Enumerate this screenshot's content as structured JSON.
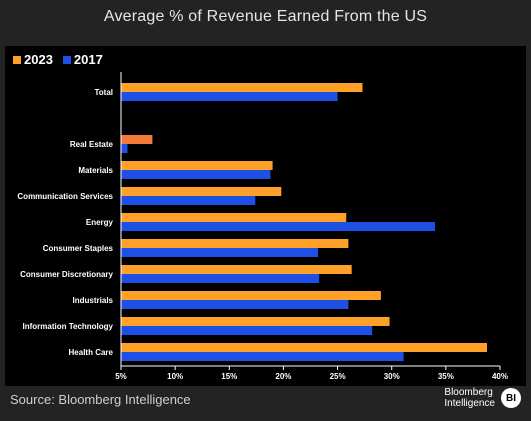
{
  "title": "Average % of Revenue Earned From the US",
  "source": "Source: Bloomberg Intelligence",
  "brand": {
    "line1": "Bloomberg",
    "line2": "Intelligence",
    "logo": "BI"
  },
  "colors": {
    "y2023": "#ffa028",
    "y2017": "#1e50e6",
    "highlight": "#f47a3a",
    "background": "#000000"
  },
  "chart_data": {
    "type": "bar",
    "orientation": "horizontal",
    "title": "Average % of Revenue Earned From the US",
    "categories": [
      "Total",
      "",
      "Real Estate",
      "Materials",
      "Communication Services",
      "Energy",
      "Consumer Staples",
      "Consumer Discretionary",
      "Industrials",
      "Information Technology",
      "Health Care"
    ],
    "series": [
      {
        "name": "2023",
        "values": [
          27.3,
          null,
          7.9,
          19.0,
          19.8,
          25.8,
          26.0,
          26.3,
          29.0,
          29.8,
          38.8
        ]
      },
      {
        "name": "2017",
        "values": [
          25.0,
          null,
          5.6,
          18.8,
          17.4,
          34.0,
          23.2,
          23.3,
          26.0,
          28.2,
          31.1
        ]
      }
    ],
    "xlim": [
      5,
      40
    ],
    "xticks": [
      "5%",
      "10%",
      "15%",
      "20%",
      "25%",
      "30%",
      "35%",
      "40%"
    ],
    "xtick_values": [
      5,
      10,
      15,
      20,
      25,
      30,
      35,
      40
    ],
    "highlight_category": "Real Estate",
    "legend_position": "top-left",
    "grid": false
  }
}
